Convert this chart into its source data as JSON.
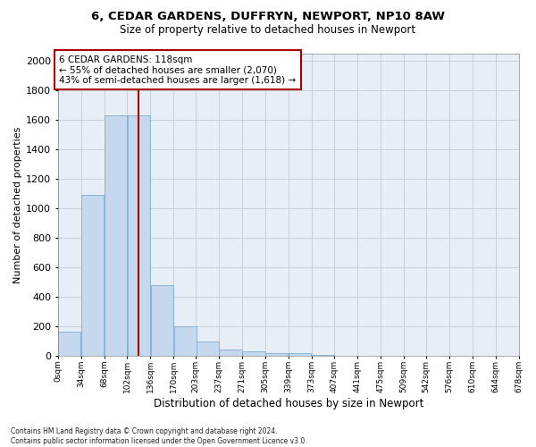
{
  "title_line1": "6, CEDAR GARDENS, DUFFRYN, NEWPORT, NP10 8AW",
  "title_line2": "Size of property relative to detached houses in Newport",
  "xlabel": "Distribution of detached houses by size in Newport",
  "ylabel": "Number of detached properties",
  "annotation_title": "6 CEDAR GARDENS: 118sqm",
  "annotation_line2": "← 55% of detached houses are smaller (2,070)",
  "annotation_line3": "43% of semi-detached houses are larger (1,618) →",
  "property_size": 118,
  "bar_color": "#c5d8ed",
  "bar_edge_color": "#7aadd4",
  "vline_color": "#aa0000",
  "annotation_box_edgecolor": "#aa0000",
  "background_color": "#ffffff",
  "plot_bg_color": "#e8eef5",
  "grid_color": "#c8d0da",
  "bin_edges": [
    0,
    34,
    68,
    102,
    136,
    170,
    203,
    237,
    271,
    305,
    339,
    373,
    407,
    441,
    475,
    509,
    542,
    576,
    610,
    644,
    678
  ],
  "bin_labels": [
    "0sqm",
    "34sqm",
    "68sqm",
    "102sqm",
    "136sqm",
    "170sqm",
    "203sqm",
    "237sqm",
    "271sqm",
    "305sqm",
    "339sqm",
    "373sqm",
    "407sqm",
    "441sqm",
    "475sqm",
    "509sqm",
    "542sqm",
    "576sqm",
    "610sqm",
    "644sqm",
    "678sqm"
  ],
  "counts": [
    165,
    1090,
    1630,
    1630,
    480,
    200,
    100,
    42,
    30,
    20,
    20,
    8,
    0,
    0,
    0,
    0,
    0,
    0,
    0,
    0
  ],
  "ylim": [
    0,
    2050
  ],
  "yticks": [
    0,
    200,
    400,
    600,
    800,
    1000,
    1200,
    1400,
    1600,
    1800,
    2000
  ],
  "footer_line1": "Contains HM Land Registry data © Crown copyright and database right 2024.",
  "footer_line2": "Contains public sector information licensed under the Open Government Licence v3.0."
}
